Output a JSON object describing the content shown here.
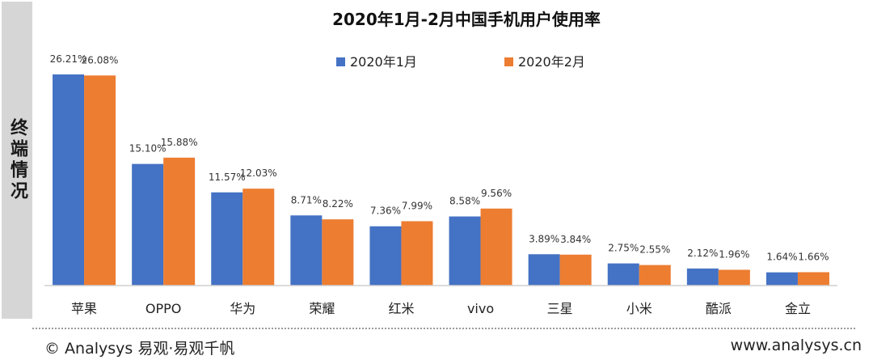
{
  "side_label": "终端情况",
  "footer": {
    "copyright": "© Analysys  易观·易观千帆",
    "website": "www.analysys.cn"
  },
  "colors": {
    "series1": "#4472c4",
    "series2": "#ed7d31"
  },
  "chart_data": {
    "type": "bar",
    "title": "2020年1月-2月中国手机用户使用率",
    "categories": [
      "苹果",
      "OPPO",
      "华为",
      "荣耀",
      "红米",
      "vivo",
      "三星",
      "小米",
      "酷派",
      "金立"
    ],
    "series": [
      {
        "name": "2020年1月",
        "values": [
          26.21,
          15.1,
          11.57,
          8.71,
          7.36,
          8.58,
          3.89,
          2.75,
          2.12,
          1.64
        ],
        "labels": [
          "26.21%",
          "15.10%",
          "11.57%",
          "8.71%",
          "7.36%",
          "8.58%",
          "3.89%",
          "2.75%",
          "2.12%",
          "1.64%"
        ]
      },
      {
        "name": "2020年2月",
        "values": [
          26.08,
          15.88,
          12.03,
          8.22,
          7.99,
          9.56,
          3.84,
          2.55,
          1.96,
          1.66
        ],
        "labels": [
          "26.08%",
          "15.88%",
          "12.03%",
          "8.22%",
          "7.99%",
          "9.56%",
          "3.84%",
          "2.55%",
          "1.96%",
          "1.66%"
        ]
      }
    ],
    "ylim": [
      0,
      26.21
    ],
    "legend": "top-right",
    "grid": false,
    "xlabel": "",
    "ylabel": ""
  }
}
